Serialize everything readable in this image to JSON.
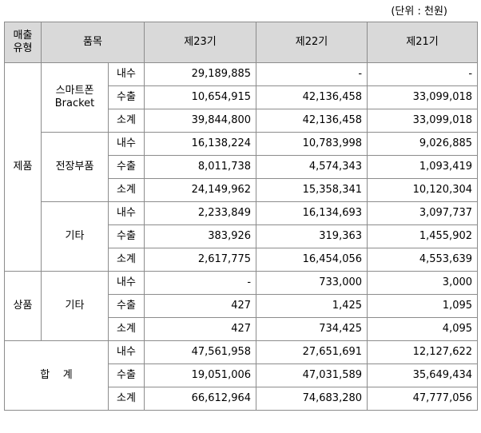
{
  "unit_note": "(단위 : 천원)",
  "header": {
    "type_line1": "매출",
    "type_line2": "유형",
    "item": "품목",
    "periods": [
      "제23기",
      "제22기",
      "제21기"
    ]
  },
  "groups": [
    {
      "type": "제품",
      "items": [
        {
          "name_line1": "스마트폰",
          "name_line2": "Bracket",
          "rows": [
            {
              "kind": "내수",
              "values": [
                "29,189,885",
                "-",
                "-"
              ]
            },
            {
              "kind": "수출",
              "values": [
                "10,654,915",
                "42,136,458",
                "33,099,018"
              ]
            },
            {
              "kind": "소계",
              "values": [
                "39,844,800",
                "42,136,458",
                "33,099,018"
              ]
            }
          ]
        },
        {
          "name_line1": "전장부품",
          "name_line2": "",
          "rows": [
            {
              "kind": "내수",
              "values": [
                "16,138,224",
                "10,783,998",
                "9,026,885"
              ]
            },
            {
              "kind": "수출",
              "values": [
                "8,011,738",
                "4,574,343",
                "1,093,419"
              ]
            },
            {
              "kind": "소계",
              "values": [
                "24,149,962",
                "15,358,341",
                "10,120,304"
              ]
            }
          ]
        },
        {
          "name_line1": "기타",
          "name_line2": "",
          "rows": [
            {
              "kind": "내수",
              "values": [
                "2,233,849",
                "16,134,693",
                "3,097,737"
              ]
            },
            {
              "kind": "수출",
              "values": [
                "383,926",
                "319,363",
                "1,455,902"
              ]
            },
            {
              "kind": "소계",
              "values": [
                "2,617,775",
                "16,454,056",
                "4,553,639"
              ]
            }
          ]
        }
      ]
    },
    {
      "type": "상품",
      "items": [
        {
          "name_line1": "기타",
          "name_line2": "",
          "rows": [
            {
              "kind": "내수",
              "values": [
                "-",
                "733,000",
                "3,000"
              ]
            },
            {
              "kind": "수출",
              "values": [
                "427",
                "1,425",
                "1,095"
              ]
            },
            {
              "kind": "소계",
              "values": [
                "427",
                "734,425",
                "4,095"
              ]
            }
          ]
        }
      ]
    }
  ],
  "total": {
    "label": "합    계",
    "rows": [
      {
        "kind": "내수",
        "values": [
          "47,561,958",
          "27,651,691",
          "12,127,622"
        ]
      },
      {
        "kind": "수출",
        "values": [
          "19,051,006",
          "47,031,589",
          "35,649,434"
        ]
      },
      {
        "kind": "소계",
        "values": [
          "66,612,964",
          "74,683,280",
          "47,777,056"
        ]
      }
    ]
  }
}
